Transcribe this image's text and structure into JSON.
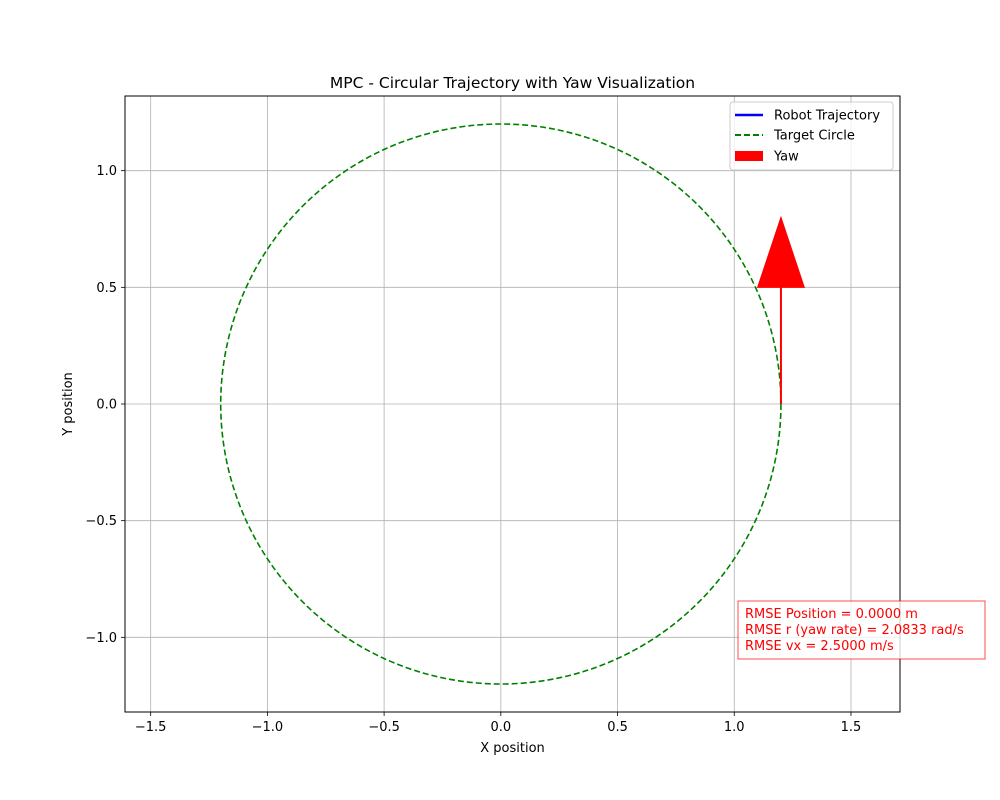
{
  "chart_data": {
    "type": "line",
    "title": "MPC - Circular Trajectory with Yaw Visualization",
    "xlabel": "X position",
    "ylabel": "Y position",
    "xlim": [
      -1.61,
      1.71
    ],
    "ylim": [
      -1.32,
      1.32
    ],
    "xticks": [
      -1.5,
      -1.0,
      -0.5,
      0.0,
      0.5,
      1.0,
      1.5
    ],
    "xtick_labels": [
      "−1.5",
      "−1.0",
      "−0.5",
      "0.0",
      "0.5",
      "1.0",
      "1.5"
    ],
    "yticks": [
      -1.0,
      -0.5,
      0.0,
      0.5,
      1.0
    ],
    "ytick_labels": [
      "−1.0",
      "−0.5",
      "0.0",
      "0.5",
      "1.0"
    ],
    "grid": true,
    "legend_position": "top-right",
    "series": [
      {
        "name": "Robot Trajectory",
        "style": "solid",
        "color": "#0000ff",
        "x": [
          1.2
        ],
        "y": [
          0.0
        ]
      },
      {
        "name": "Target Circle",
        "style": "dashed",
        "color": "#008000",
        "center": [
          0.0,
          0.0
        ],
        "radius": 1.2
      }
    ],
    "yaw_arrow": {
      "name": "Yaw",
      "color": "#ff0000",
      "origin": [
        1.2,
        0.0
      ],
      "direction": [
        0.0,
        0.8
      ]
    },
    "annotation": {
      "color": "#ff0000",
      "lines": [
        "RMSE Position = 0.0000 m",
        "RMSE r (yaw rate) = 2.0833 rad/s",
        "RMSE vx = 2.5000 m/s"
      ]
    }
  }
}
